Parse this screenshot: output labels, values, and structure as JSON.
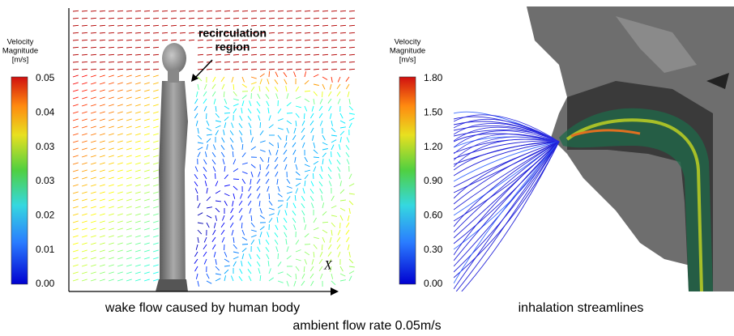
{
  "left_panel": {
    "colorbar": {
      "title": [
        "Velocity",
        "Magnitude",
        "[m/s]"
      ],
      "ticks": [
        "0.05",
        "0.04",
        "0.03",
        "0.03",
        "0.02",
        "0.01",
        "0.00"
      ]
    },
    "annotation": [
      "recirculation",
      "region"
    ],
    "axis_label": "X",
    "caption": "wake flow caused by human body"
  },
  "right_panel": {
    "colorbar": {
      "title": [
        "Velocity",
        "Magnitude",
        "[m/s]"
      ],
      "ticks": [
        "1.80",
        "1.50",
        "1.20",
        "0.90",
        "0.60",
        "0.30",
        "0.00"
      ]
    },
    "caption": "inhalation streamlines"
  },
  "caption": "ambient flow rate 0.05m/s"
}
